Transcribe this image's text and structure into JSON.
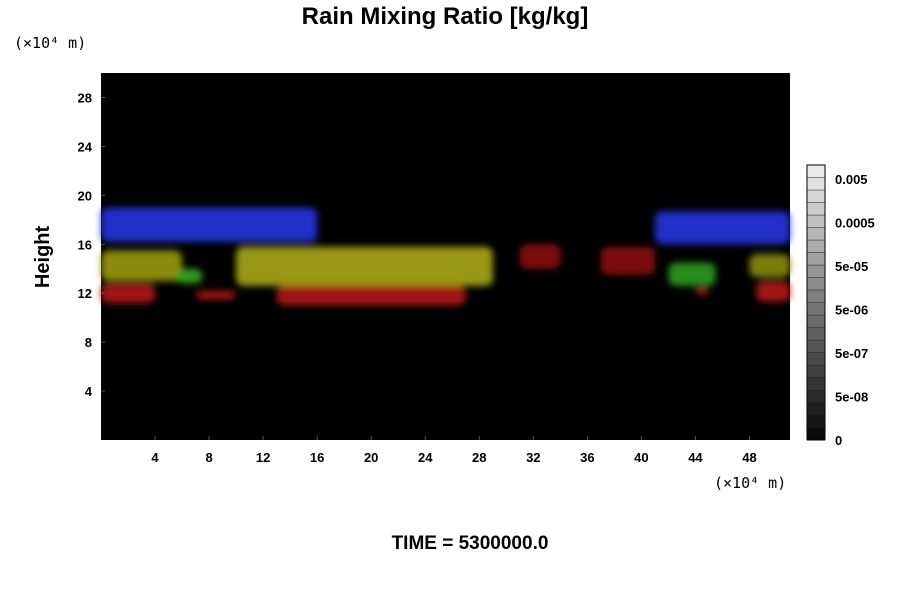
{
  "chart_data": {
    "type": "heatmap",
    "title": "Rain Mixing Ratio [kg/kg]",
    "ylabel": "Height",
    "x_unit_label": "(×10⁴ m)",
    "y_unit_label": "(×10⁴ m)",
    "xlim": [
      0,
      51
    ],
    "ylim": [
      0,
      30
    ],
    "x_ticks": [
      4,
      8,
      12,
      16,
      20,
      24,
      28,
      32,
      36,
      40,
      44,
      48
    ],
    "y_ticks": [
      4,
      8,
      12,
      16,
      20,
      24,
      28
    ],
    "background_color": "#000000",
    "colorbar": {
      "labels": [
        "0.005",
        "0.0005",
        "5e-05",
        "5e-06",
        "5e-07",
        "5e-08",
        "0"
      ],
      "levels": 22
    },
    "features": [
      {
        "kind": "blue",
        "color": "#2233dd",
        "x": [
          0,
          16
        ],
        "y": [
          16.2,
          19.0
        ]
      },
      {
        "kind": "blue",
        "color": "#2233dd",
        "x": [
          41,
          51
        ],
        "y": [
          16.0,
          18.7
        ]
      },
      {
        "kind": "yellow",
        "color": "#9a9a10",
        "x": [
          0,
          6
        ],
        "y": [
          13.0,
          15.5
        ]
      },
      {
        "kind": "yellow",
        "color": "#a8a815",
        "x": [
          10,
          29
        ],
        "y": [
          12.6,
          15.8
        ]
      },
      {
        "kind": "yellow",
        "color": "#8a8a10",
        "x": [
          48,
          51
        ],
        "y": [
          13.3,
          15.2
        ]
      },
      {
        "kind": "green",
        "color": "#2e9a1e",
        "x": [
          42,
          45.5
        ],
        "y": [
          12.6,
          14.5
        ]
      },
      {
        "kind": "green",
        "color": "#33aa22",
        "x": [
          5.5,
          7.5
        ],
        "y": [
          12.8,
          14.0
        ]
      },
      {
        "kind": "red",
        "color": "#b01515",
        "x": [
          0,
          4
        ],
        "y": [
          11.2,
          12.8
        ]
      },
      {
        "kind": "red",
        "color": "#b01515",
        "x": [
          7,
          10
        ],
        "y": [
          11.5,
          12.2
        ]
      },
      {
        "kind": "red",
        "color": "#b01515",
        "x": [
          13,
          27
        ],
        "y": [
          11.0,
          12.6
        ]
      },
      {
        "kind": "red",
        "color": "#8a1010",
        "x": [
          31,
          34
        ],
        "y": [
          14.0,
          16.0
        ]
      },
      {
        "kind": "red",
        "color": "#8a1010",
        "x": [
          37,
          41
        ],
        "y": [
          13.5,
          15.8
        ]
      },
      {
        "kind": "red",
        "color": "#a01010",
        "x": [
          44,
          45
        ],
        "y": [
          11.8,
          12.5
        ]
      },
      {
        "kind": "red",
        "color": "#b01515",
        "x": [
          48.5,
          51
        ],
        "y": [
          11.3,
          13.0
        ]
      }
    ]
  },
  "footer": {
    "time_label": "TIME = 5300000.0"
  }
}
